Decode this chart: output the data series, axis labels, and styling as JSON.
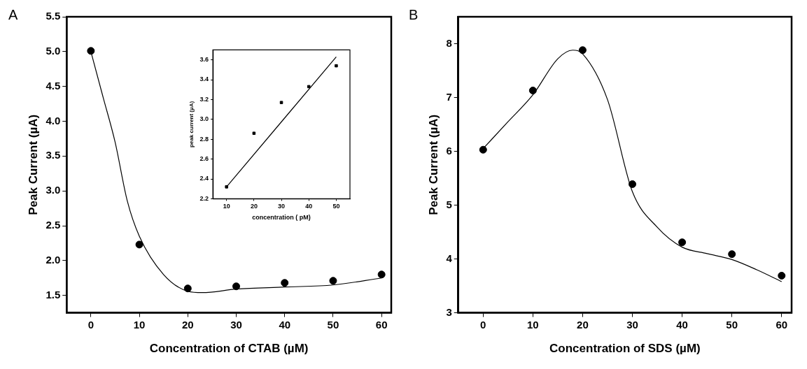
{
  "chart_data": [
    {
      "type": "scatter",
      "annotations": [
        "A"
      ],
      "xlabel": "Concentration of CTAB (µM)",
      "ylabel": "Peak Current (µA)",
      "x": [
        0,
        10,
        20,
        30,
        40,
        50,
        60
      ],
      "xlim": [
        -5,
        62
      ],
      "xticks": [
        0,
        10,
        20,
        30,
        40,
        50,
        60
      ],
      "ylim": [
        1.25,
        5.5
      ],
      "yticks": [
        {
          "value": 1.5,
          "label": "1.5"
        },
        {
          "value": 2,
          "label": "2.0"
        },
        {
          "value": 2.5,
          "label": "2.5"
        },
        {
          "value": 3,
          "label": "3.0"
        },
        {
          "value": 3.5,
          "label": "3.5"
        },
        {
          "value": 4,
          "label": "4.0"
        },
        {
          "value": 4.5,
          "label": "4.5"
        },
        {
          "value": 5,
          "label": "5.0"
        },
        {
          "value": 5.5,
          "label": "5.5"
        }
      ],
      "grid": false,
      "legend": false,
      "series": [
        {
          "marker": "circle",
          "color": "#000000",
          "values": [
            5.01,
            2.23,
            1.6,
            1.63,
            1.68,
            1.71,
            1.8
          ]
        },
        {
          "type": "line",
          "marker": "none",
          "color": "#000000",
          "line_style": "solid",
          "x": [
            0,
            2.5,
            5,
            7.5,
            10,
            15,
            20,
            23,
            30,
            40,
            50,
            60
          ],
          "values": [
            5.0,
            4.35,
            3.7,
            2.86,
            2.35,
            1.8,
            1.56,
            1.54,
            1.59,
            1.62,
            1.65,
            1.75
          ]
        }
      ]
    },
    {
      "type": "scatter",
      "xlabel": "concentration ( pM)",
      "ylabel": "peak current (µA)",
      "x": [
        10,
        20,
        30,
        40,
        50
      ],
      "xlim": [
        5,
        55
      ],
      "xticks": [
        10,
        20,
        30,
        40,
        50
      ],
      "ylim": [
        2.2,
        3.7
      ],
      "yticks": [
        {
          "value": 2.2,
          "label": "2.2"
        },
        {
          "value": 2.4,
          "label": "2.4"
        },
        {
          "value": 2.6,
          "label": "2.6"
        },
        {
          "value": 2.8,
          "label": "2.8"
        },
        {
          "value": 3,
          "label": "3.0"
        },
        {
          "value": 3.2,
          "label": "3.2"
        },
        {
          "value": 3.4,
          "label": "3.4"
        },
        {
          "value": 3.6,
          "label": "3.6"
        }
      ],
      "grid": false,
      "legend": false,
      "series": [
        {
          "marker": "square",
          "color": "#000000",
          "values": [
            2.32,
            2.86,
            3.17,
            3.33,
            3.54
          ]
        },
        {
          "type": "line",
          "marker": "none",
          "color": "#000000",
          "line_style": "solid",
          "x": [
            10,
            50
          ],
          "values": [
            2.32,
            3.63
          ]
        }
      ]
    },
    {
      "type": "scatter",
      "annotations": [
        "B"
      ],
      "xlabel": "Concentration of SDS (µM)",
      "ylabel": "Peak Current (µA)",
      "x": [
        0,
        10,
        20,
        30,
        40,
        50,
        60
      ],
      "xlim": [
        -5,
        62
      ],
      "xticks": [
        0,
        10,
        20,
        30,
        40,
        50,
        60
      ],
      "ylim": [
        3,
        8.5
      ],
      "yticks": [
        3,
        4,
        5,
        6,
        7,
        8
      ],
      "grid": false,
      "legend": false,
      "series": [
        {
          "marker": "circle",
          "color": "#000000",
          "values": [
            6.03,
            7.13,
            7.88,
            5.39,
            4.31,
            4.09,
            3.69
          ]
        },
        {
          "type": "line",
          "marker": "none",
          "color": "#000000",
          "line_style": "solid",
          "x": [
            0,
            5,
            10,
            15,
            18,
            20,
            25,
            30,
            35,
            40,
            45,
            50,
            55,
            60
          ],
          "values": [
            6.05,
            6.55,
            7.05,
            7.72,
            7.88,
            7.81,
            6.96,
            5.25,
            4.59,
            4.22,
            4.1,
            3.99,
            3.8,
            3.58
          ]
        }
      ]
    }
  ]
}
